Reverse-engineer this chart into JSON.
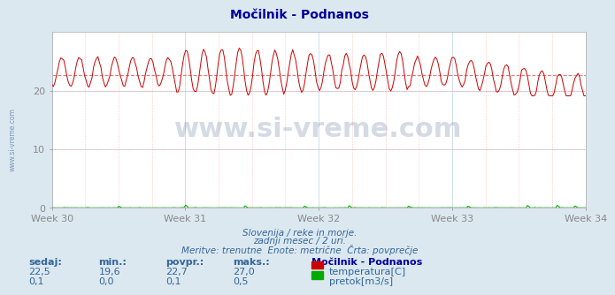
{
  "title": "Močilnik - Podnanos",
  "bg_color": "#dce8f0",
  "plot_bg_color": "#ffffff",
  "grid_color_v": "#c8d8e8",
  "grid_color_h": "#c8d8e8",
  "grid_dotted_color": "#ffaaaa",
  "x_labels": [
    "Week 30",
    "Week 31",
    "Week 32",
    "Week 33",
    "Week 34"
  ],
  "x_ticks_pos": [
    0,
    84,
    168,
    252,
    336
  ],
  "n_points": 360,
  "temp_min": 19.6,
  "temp_max": 27.0,
  "temp_avg": 22.7,
  "temp_current": 22.5,
  "temp_color": "#cc0000",
  "temp_avg_color": "#dd6666",
  "flow_color": "#00aa00",
  "flow_avg_color": "#00aa00",
  "ylim": [
    0,
    30
  ],
  "yticks": [
    0,
    10,
    20
  ],
  "subtitle1": "Slovenija / reke in morje.",
  "subtitle2": "zadnji mesec / 2 uri.",
  "subtitle3": "Meritve: trenutne  Enote: metrične  Črta: povprečje",
  "footer_color": "#336699",
  "title_color": "#000099",
  "watermark": "www.si-vreme.com",
  "stats_label_color": "#336699",
  "legend_title": "Močilnik - Podnanos",
  "legend_items": [
    "temperatura[C]",
    "pretok[m3/s]"
  ],
  "legend_colors": [
    "#cc0000",
    "#00aa00"
  ],
  "stats_headers": [
    "sedaj:",
    "min.:",
    "povpr.:",
    "maks.:"
  ],
  "stats_temp": [
    "22,5",
    "19,6",
    "22,7",
    "27,0"
  ],
  "stats_flow": [
    "0,1",
    "0,0",
    "0,1",
    "0,5"
  ]
}
